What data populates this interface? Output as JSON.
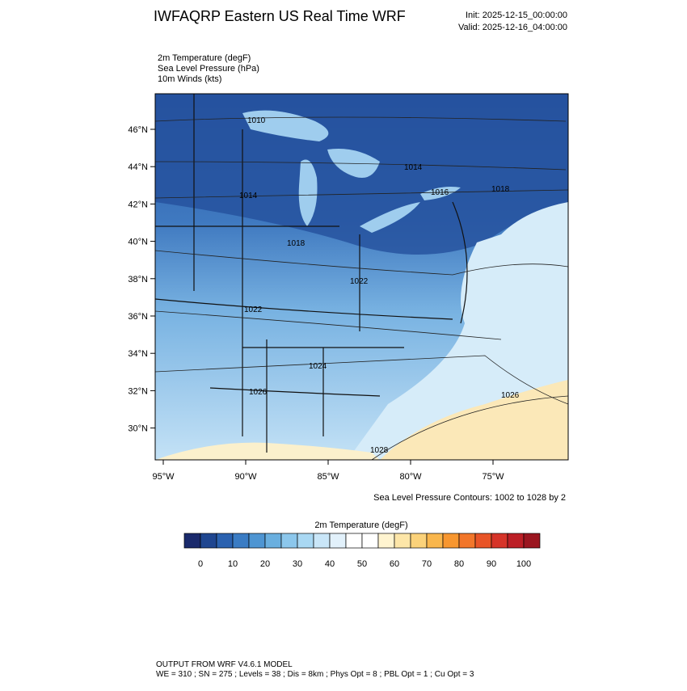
{
  "header": {
    "title": "IWFAQRP Eastern US Real Time WRF",
    "init": "Init: 2025-12-15_00:00:00",
    "valid": "Valid: 2025-12-16_04:00:00"
  },
  "fields": [
    "2m Temperature   (degF)",
    "Sea Level Pressure   (hPa)",
    "10m Winds   (kts)"
  ],
  "map": {
    "lat_labels": [
      "46°N",
      "44°N",
      "42°N",
      "40°N",
      "38°N",
      "36°N",
      "34°N",
      "32°N",
      "30°N"
    ],
    "lon_labels": [
      "95°W",
      "90°W",
      "85°W",
      "80°W",
      "75°W"
    ],
    "contour_labels": [
      "1010",
      "1014",
      "1016",
      "1018",
      "1014",
      "1018",
      "1022",
      "1022",
      "1024",
      "1026",
      "1026",
      "1028"
    ],
    "contour_note": "Sea Level Pressure Contours: 1002 to 1028 by 2"
  },
  "colorbar": {
    "title": "2m Temperature  (degF)",
    "labels": [
      "0",
      "10",
      "20",
      "30",
      "40",
      "50",
      "60",
      "70",
      "80",
      "90",
      "100"
    ],
    "colors": [
      "#1a2a6c",
      "#1f4690",
      "#2b62b0",
      "#3a7cc4",
      "#4e95d2",
      "#6aafdf",
      "#8cc7ec",
      "#a9d8f3",
      "#c9e6f8",
      "#e2f1fb",
      "#ffffff",
      "#ffffff",
      "#fff4d0",
      "#fde6a8",
      "#fbd27a",
      "#f9b64c",
      "#f7962f",
      "#f2762a",
      "#e85427",
      "#d63429",
      "#bc1f26",
      "#9b1620"
    ]
  },
  "footer": {
    "line1": "OUTPUT FROM WRF V4.6.1 MODEL",
    "line2": "WE = 310 ; SN = 275 ; Levels = 38 ; Dis = 8km ; Phys Opt = 8 ; PBL Opt = 1 ; Cu Opt = 3"
  }
}
